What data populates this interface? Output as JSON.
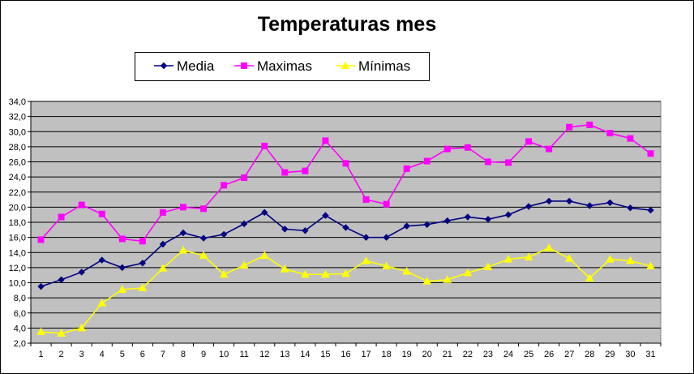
{
  "chart_data": {
    "type": "line",
    "title": "Temperaturas mes",
    "xlabel": "",
    "ylabel": "",
    "x": [
      1,
      2,
      3,
      4,
      5,
      6,
      7,
      8,
      9,
      10,
      11,
      12,
      13,
      14,
      15,
      16,
      17,
      18,
      19,
      20,
      21,
      22,
      23,
      24,
      25,
      26,
      27,
      28,
      29,
      30,
      31
    ],
    "ylim": [
      2.0,
      34.0
    ],
    "y_ticks": [
      "2,0",
      "4,0",
      "6,0",
      "8,0",
      "10,0",
      "12,0",
      "14,0",
      "16,0",
      "18,0",
      "20,0",
      "22,0",
      "24,0",
      "26,0",
      "28,0",
      "30,0",
      "32,0",
      "34,0"
    ],
    "grid": true,
    "legend_position": "top",
    "plot_background": "#c0c0c0",
    "series": [
      {
        "name": "Media",
        "color": "#000080",
        "marker": "diamond",
        "values": [
          9.5,
          10.4,
          11.4,
          13.0,
          12.0,
          12.6,
          15.1,
          16.6,
          15.9,
          16.4,
          17.8,
          19.3,
          17.1,
          16.9,
          18.9,
          17.3,
          16.0,
          16.0,
          17.5,
          17.7,
          18.2,
          18.7,
          18.4,
          19.0,
          20.1,
          20.8,
          20.8,
          20.2,
          20.6,
          19.9,
          19.6
        ]
      },
      {
        "name": "Maximas",
        "color": "#ff00ff",
        "marker": "square",
        "values": [
          15.7,
          18.7,
          20.3,
          19.1,
          15.8,
          15.5,
          19.3,
          20.0,
          19.8,
          22.9,
          23.9,
          28.1,
          24.6,
          24.8,
          28.8,
          25.8,
          21.0,
          20.4,
          25.1,
          26.1,
          27.7,
          27.9,
          26.0,
          25.9,
          28.7,
          27.7,
          30.6,
          30.9,
          29.8,
          29.1,
          27.1
        ]
      },
      {
        "name": "Mínimas",
        "color": "#ffff00",
        "marker": "triangle",
        "values": [
          3.5,
          3.3,
          4.0,
          7.3,
          9.1,
          9.3,
          11.9,
          14.3,
          13.6,
          11.1,
          12.3,
          13.6,
          11.8,
          11.1,
          11.1,
          11.2,
          12.9,
          12.2,
          11.5,
          10.2,
          10.4,
          11.3,
          12.1,
          13.1,
          13.4,
          14.6,
          13.2,
          10.6,
          13.1,
          12.9,
          12.2
        ]
      }
    ]
  }
}
